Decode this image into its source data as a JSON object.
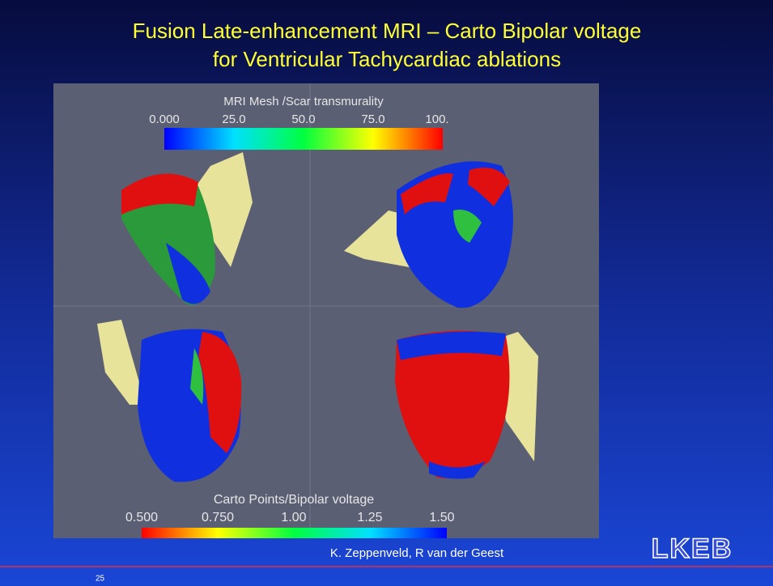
{
  "slide": {
    "title": [
      "Fusion Late-enhancement MRI – Carto Bipolar voltage",
      "for Ventricular Tachycardiac ablations"
    ],
    "image": {
      "top_colorbar": {
        "title": "MRI Mesh /Scar transmurality",
        "labels": [
          "0.000",
          "25.0",
          "50.0",
          "75.0",
          "100."
        ]
      },
      "bottom_colorbar": {
        "title": "Carto Points/Bipolar voltage",
        "labels": [
          "0.500",
          "0.750",
          "1.00",
          "1.25",
          "1.50"
        ]
      }
    },
    "footer": {
      "authors": "K. Zeppenveld, R van der Geest",
      "logo": "LKEB",
      "page": "25"
    }
  }
}
